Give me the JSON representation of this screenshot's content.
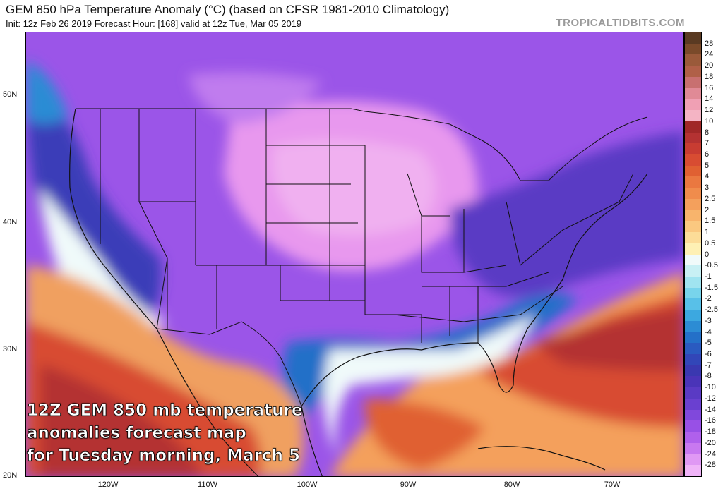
{
  "header": {
    "title": "GEM 850 hPa Temperature Anomaly (°C) (based on CFSR 1981-2010 Climatology)",
    "subtitle": "Init: 12z Feb 26 2019   Forecast Hour: [168]   valid at 12z Tue, Mar 05 2019",
    "brand": "TROPICALTIDBITS.COM"
  },
  "map": {
    "lat_labels": [
      "50N",
      "40N",
      "30N",
      "20N"
    ],
    "lon_labels": [
      "120W",
      "110W",
      "100W",
      "90W",
      "80W",
      "70W"
    ],
    "caption_lines": [
      "12Z GEM 850 mb temperature",
      "anomalies forecast map",
      "for Tuesday morning, March 5"
    ]
  },
  "colorbar": {
    "labels": [
      "28",
      "24",
      "20",
      "18",
      "16",
      "14",
      "12",
      "10",
      "8",
      "7",
      "6",
      "5",
      "4",
      "3",
      "2.5",
      "2",
      "1.5",
      "1",
      "0.5",
      "0",
      "-0.5",
      "-1",
      "-1.5",
      "-2",
      "-2.5",
      "-3",
      "-4",
      "-5",
      "-6",
      "-7",
      "-8",
      "-10",
      "-12",
      "-14",
      "-16",
      "-18",
      "-20",
      "-24",
      "-28"
    ],
    "colors": [
      "#5a3a22",
      "#7a4a2a",
      "#9a5a3a",
      "#b06048",
      "#c87070",
      "#e08a96",
      "#f0a0b4",
      "#f4b4c4",
      "#a02828",
      "#b43232",
      "#c83c32",
      "#d84c32",
      "#e06032",
      "#ea7840",
      "#f08c4c",
      "#f4a05c",
      "#f8b46c",
      "#fac880",
      "#fcdc98",
      "#fef0b4",
      "#f0fafa",
      "#c8f0f4",
      "#a0e4f0",
      "#78d4ec",
      "#58c0e8",
      "#3ca8e0",
      "#2c8cd4",
      "#2470c8",
      "#2a5ac0",
      "#3246b8",
      "#3a38b0",
      "#4a34b8",
      "#5a3ac4",
      "#6a40d0",
      "#8048dc",
      "#9850e6",
      "#b060ec",
      "#c878f0",
      "#e098f4",
      "#f0b4f8"
    ]
  }
}
